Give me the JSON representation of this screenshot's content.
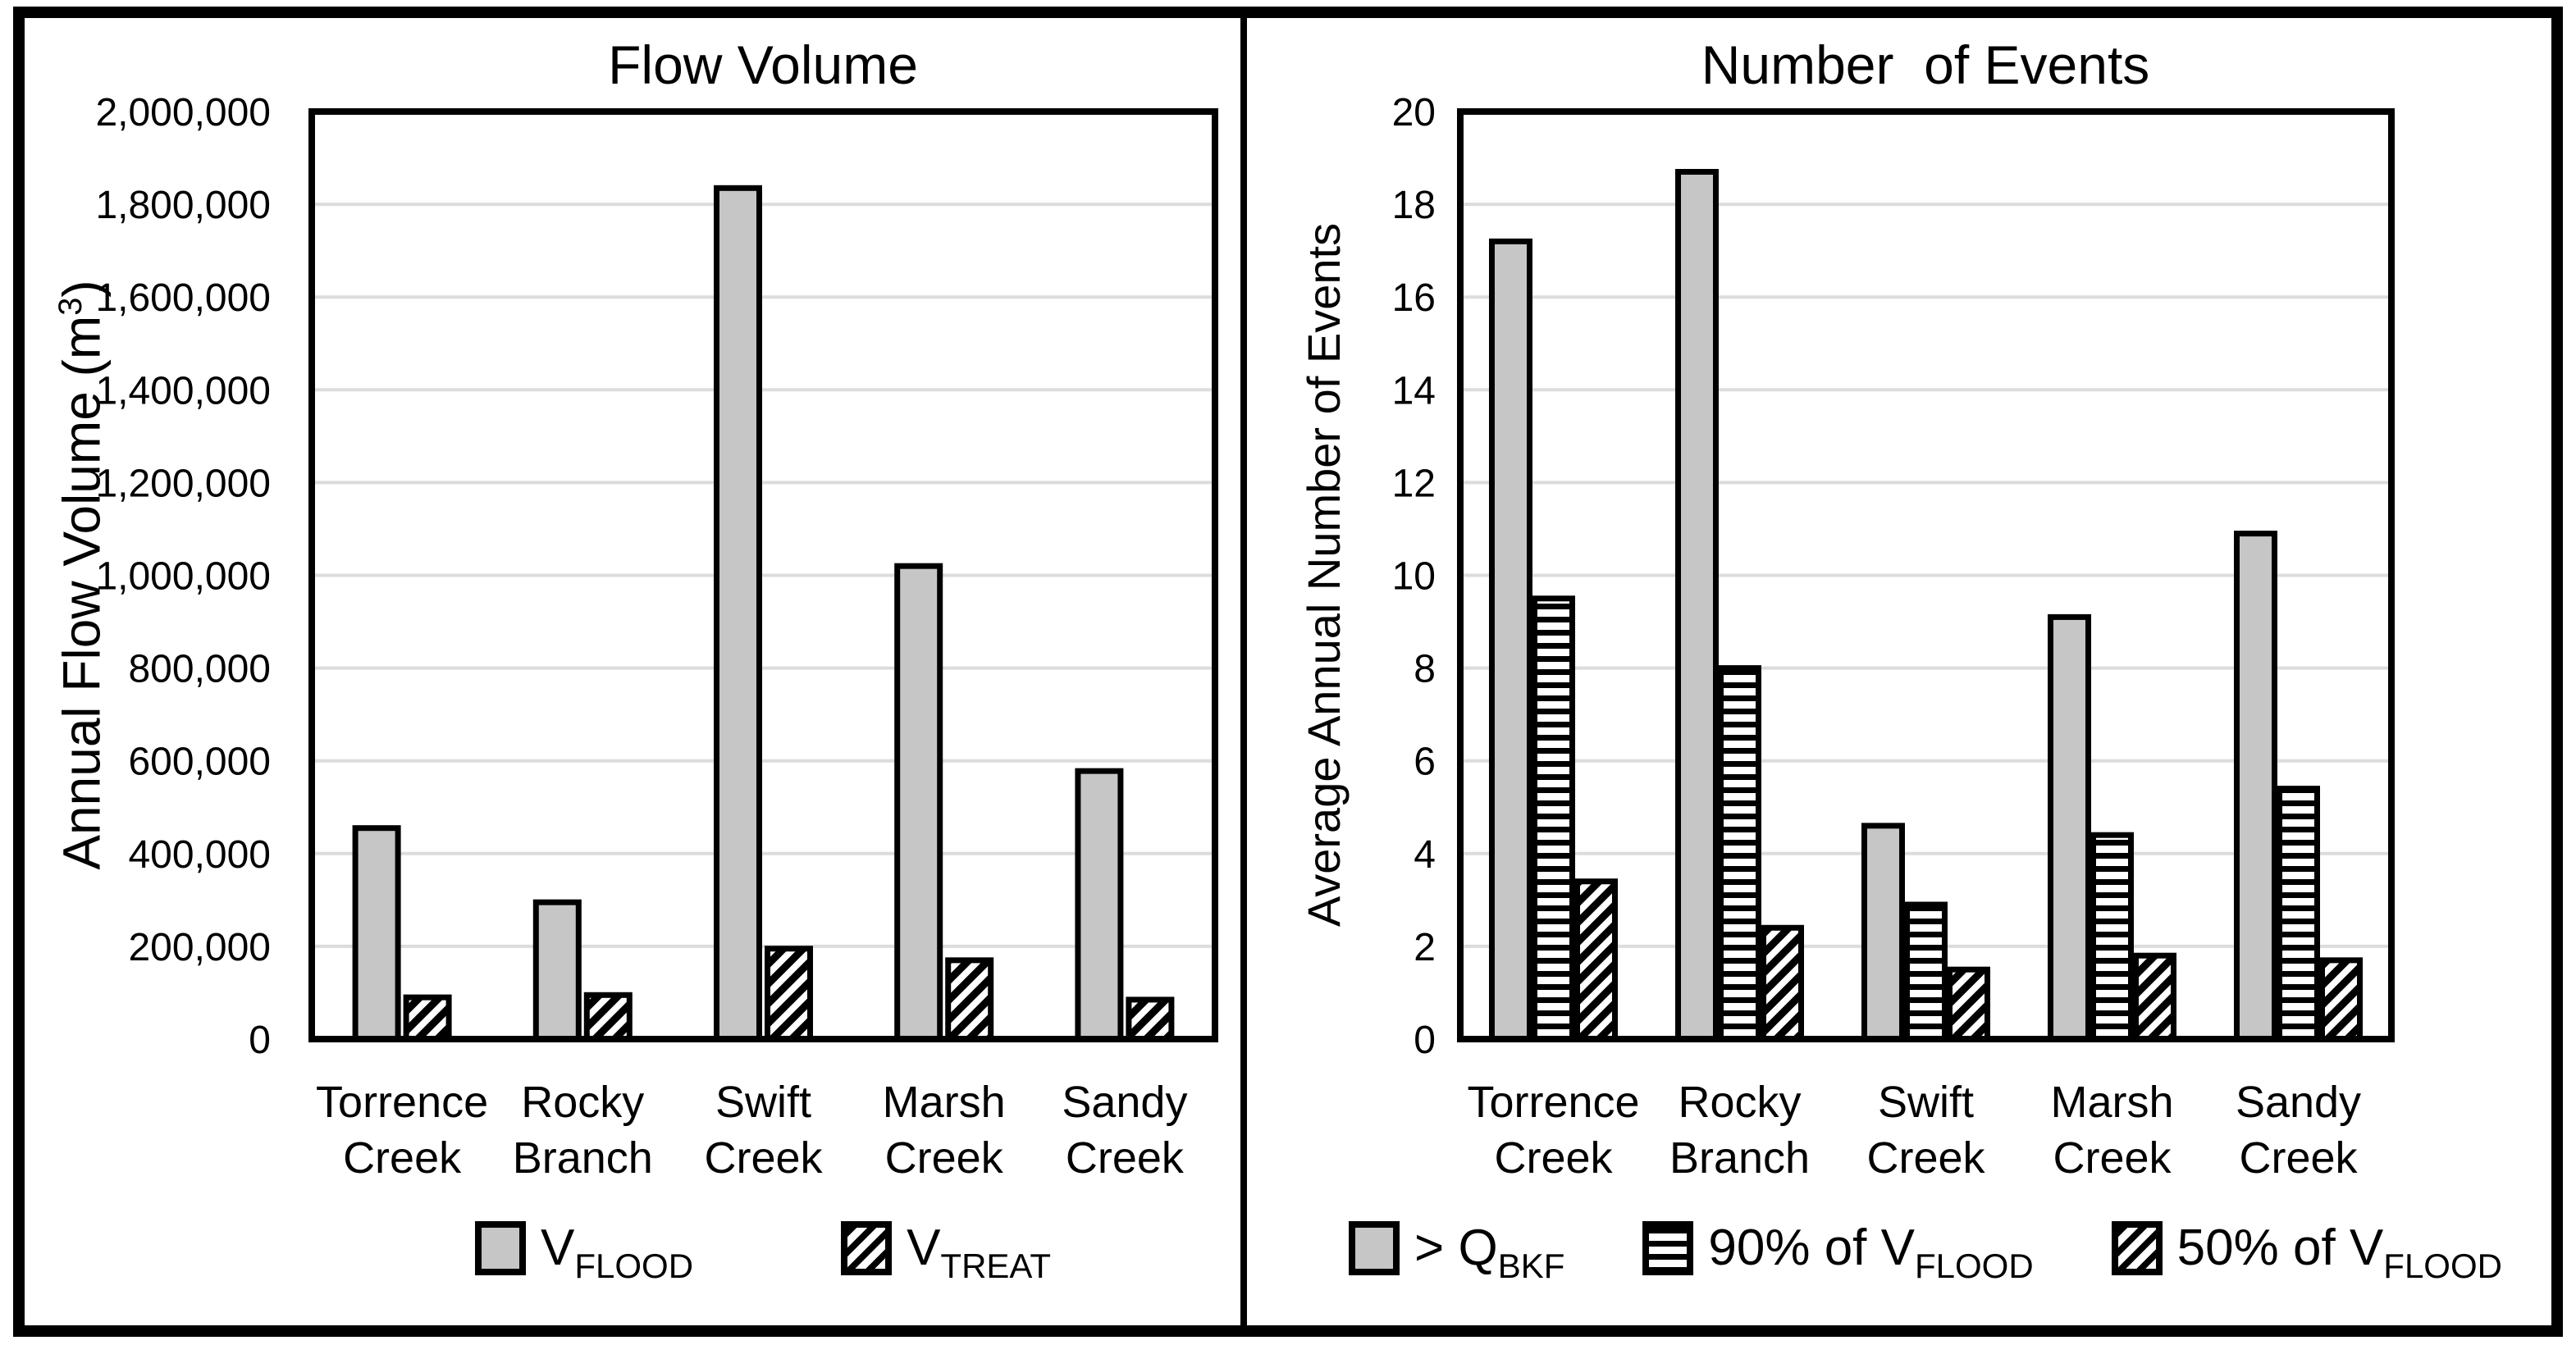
{
  "chart_data": [
    {
      "type": "bar",
      "title": "Flow Volume",
      "ylabel": "Annual Flow Volume (m³)",
      "ylabel_parts": {
        "pre": "Annual Flow Volume (m",
        "sup": "3",
        "post": ")"
      },
      "xlabel": "",
      "categories": [
        "Torrence Creek",
        "Rocky Branch",
        "Swift Creek",
        "Marsh Creek",
        "Sandy Creek"
      ],
      "categories_lines": [
        [
          "Torrence",
          "Creek"
        ],
        [
          "Rocky",
          "Branch"
        ],
        [
          "Swift",
          "Creek"
        ],
        [
          "Marsh",
          "Creek"
        ],
        [
          "Sandy",
          "Creek"
        ]
      ],
      "series": [
        {
          "name": "VFLOOD",
          "legend": {
            "prefix": "",
            "main": "V",
            "sub": "FLOOD"
          },
          "pattern": "solid",
          "values": [
            455000,
            295000,
            1835000,
            1020000,
            578000
          ]
        },
        {
          "name": "VTREAT",
          "legend": {
            "prefix": "",
            "main": "V",
            "sub": "TREAT"
          },
          "pattern": "diagonal",
          "values": [
            90000,
            95000,
            195000,
            170000,
            85000
          ]
        }
      ],
      "ylim": [
        0,
        2000000
      ],
      "ytick_step": 200000,
      "ytick_format": "thousands-comma",
      "grid": true,
      "legend_position": "bottom"
    },
    {
      "type": "bar",
      "title": "Number  of Events",
      "ylabel": "Average Annual Number of Events",
      "xlabel": "",
      "categories": [
        "Torrence Creek",
        "Rocky Branch",
        "Swift Creek",
        "Marsh Creek",
        "Sandy Creek"
      ],
      "categories_lines": [
        [
          "Torrence",
          "Creek"
        ],
        [
          "Rocky",
          "Branch"
        ],
        [
          "Swift",
          "Creek"
        ],
        [
          "Marsh",
          "Creek"
        ],
        [
          "Sandy",
          "Creek"
        ]
      ],
      "series": [
        {
          "name": "> QBKF",
          "legend": {
            "prefix": "> ",
            "main": "Q",
            "sub": "BKF"
          },
          "pattern": "solid",
          "values": [
            17.2,
            18.7,
            4.6,
            9.1,
            10.9
          ]
        },
        {
          "name": "90% of VFLOOD",
          "legend": {
            "prefix": "90% of ",
            "main": "V",
            "sub": "FLOOD"
          },
          "pattern": "horizontal",
          "values": [
            9.5,
            8.0,
            2.9,
            4.4,
            5.4
          ]
        },
        {
          "name": "50% of VFLOOD",
          "legend": {
            "prefix": "50% of ",
            "main": "V",
            "sub": "FLOOD"
          },
          "pattern": "diagonal",
          "values": [
            3.4,
            2.4,
            1.5,
            1.8,
            1.7
          ]
        }
      ],
      "ylim": [
        0,
        20
      ],
      "ytick_step": 2,
      "ytick_format": "plain",
      "grid": true,
      "legend_position": "bottom"
    }
  ],
  "colors": {
    "bar_fill_gray": "#c6c6c6",
    "hatch_foreground": "#000000",
    "hatch_background": "#ffffff",
    "grid_line": "#dcdcdc",
    "axis_line": "#000000",
    "text": "#000000",
    "background": "#ffffff",
    "frame_border": "#000000"
  }
}
